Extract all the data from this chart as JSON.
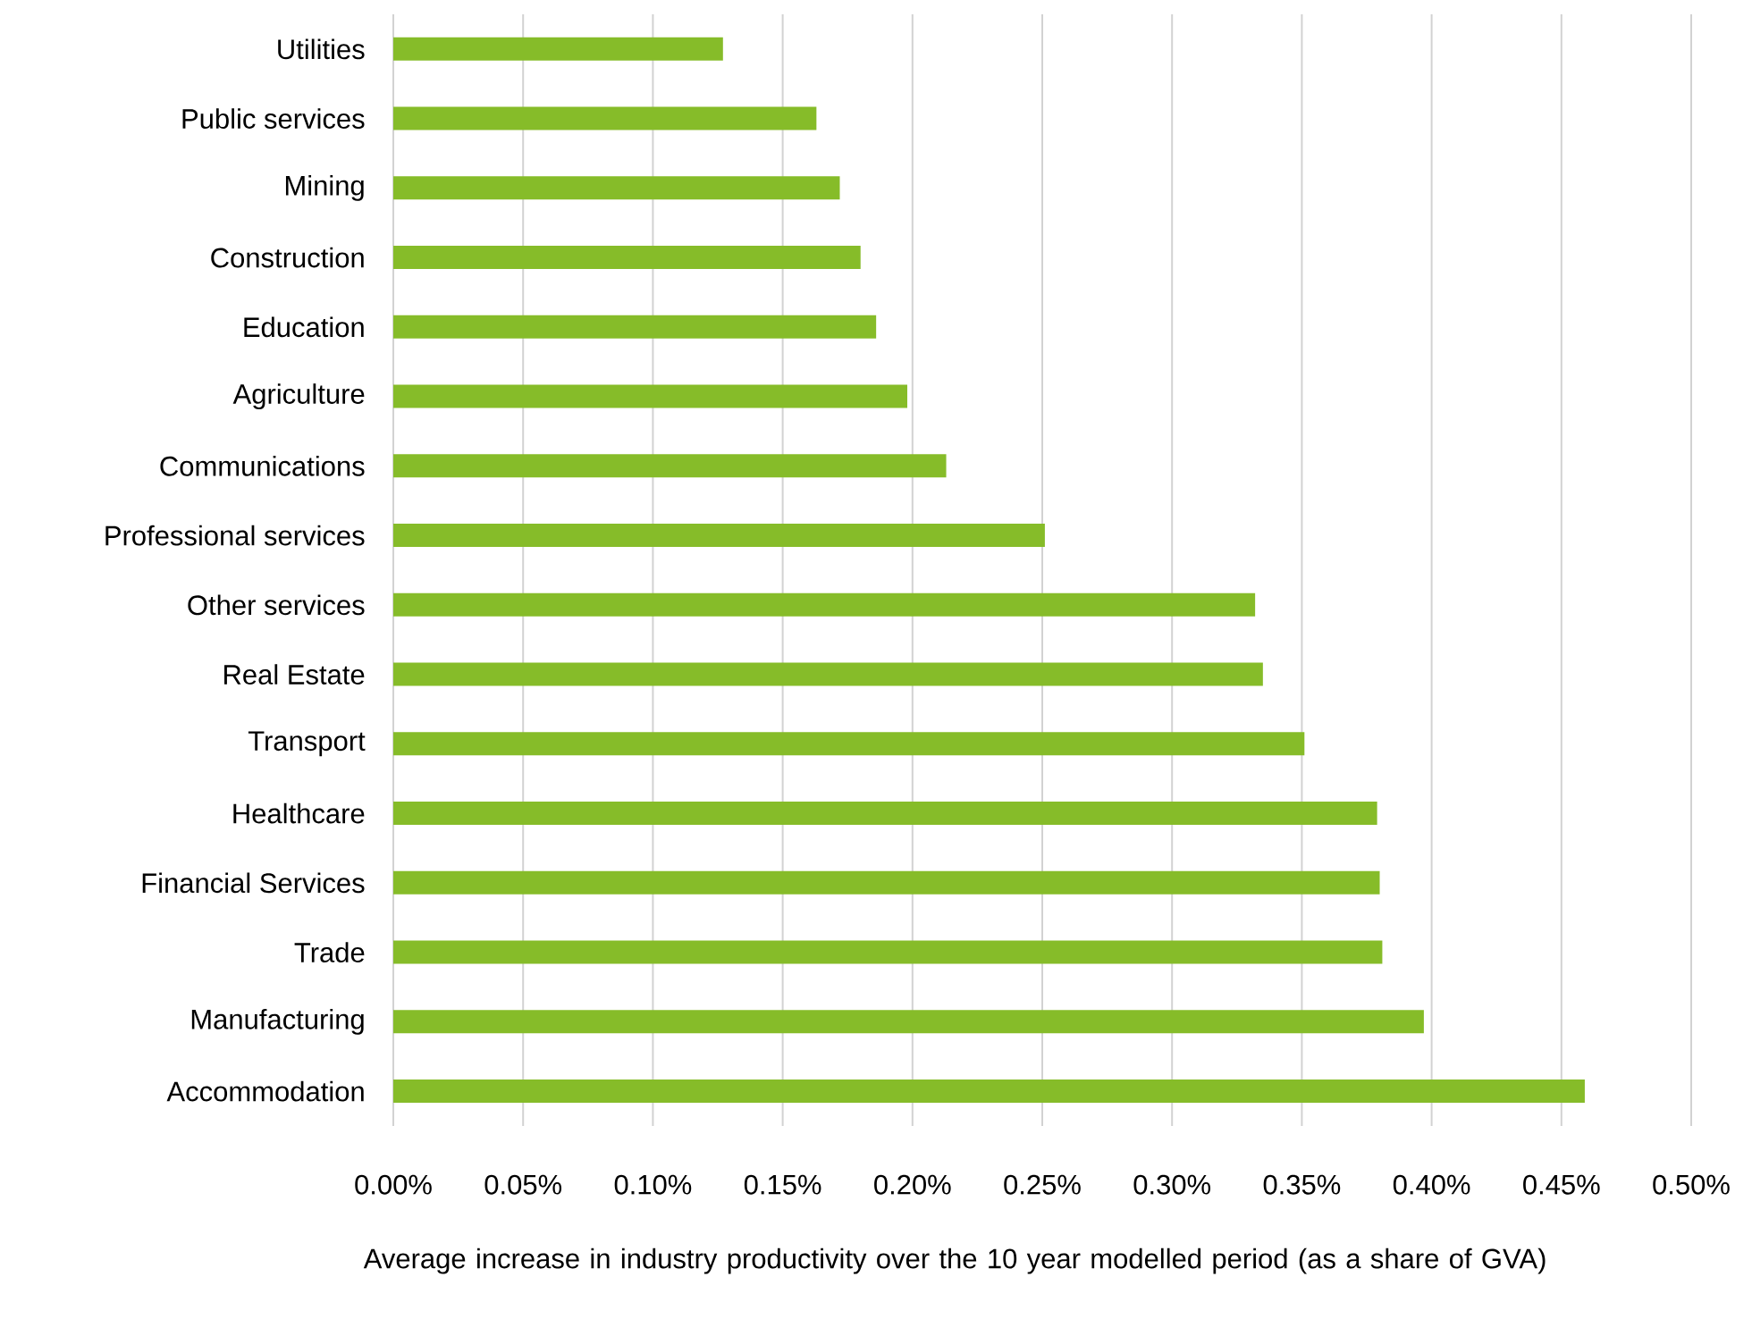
{
  "chart_data": {
    "type": "bar",
    "orientation": "horizontal",
    "xlabel": "Average increase in industry productivity over the 10 year modelled period (as a share of GVA)",
    "categories": [
      "Utilities",
      "Public services",
      "Mining",
      "Construction",
      "Education",
      "Agriculture",
      "Communications",
      "Professional services",
      "Other services",
      "Real Estate",
      "Transport",
      "Healthcare",
      "Financial Services",
      "Trade",
      "Manufacturing",
      "Accommodation"
    ],
    "values": [
      0.127,
      0.163,
      0.172,
      0.18,
      0.186,
      0.198,
      0.213,
      0.251,
      0.332,
      0.335,
      0.351,
      0.379,
      0.38,
      0.381,
      0.397,
      0.459
    ],
    "color": "#86bc29",
    "xlim": [
      0,
      0.5
    ],
    "xticks": [
      {
        "value": 0,
        "label": "0.00%"
      },
      {
        "value": 0.05,
        "label": "0.05%"
      },
      {
        "value": 0.1,
        "label": "0.10%"
      },
      {
        "value": 0.15,
        "label": "0.15%"
      },
      {
        "value": 0.2,
        "label": "0.20%"
      },
      {
        "value": 0.25,
        "label": "0.25%"
      },
      {
        "value": 0.3,
        "label": "0.30%"
      },
      {
        "value": 0.35,
        "label": "0.35%"
      },
      {
        "value": 0.4,
        "label": "0.40%"
      },
      {
        "value": 0.45,
        "label": "0.45%"
      },
      {
        "value": 0.5,
        "label": "0.50%"
      }
    ],
    "grid": "x"
  }
}
